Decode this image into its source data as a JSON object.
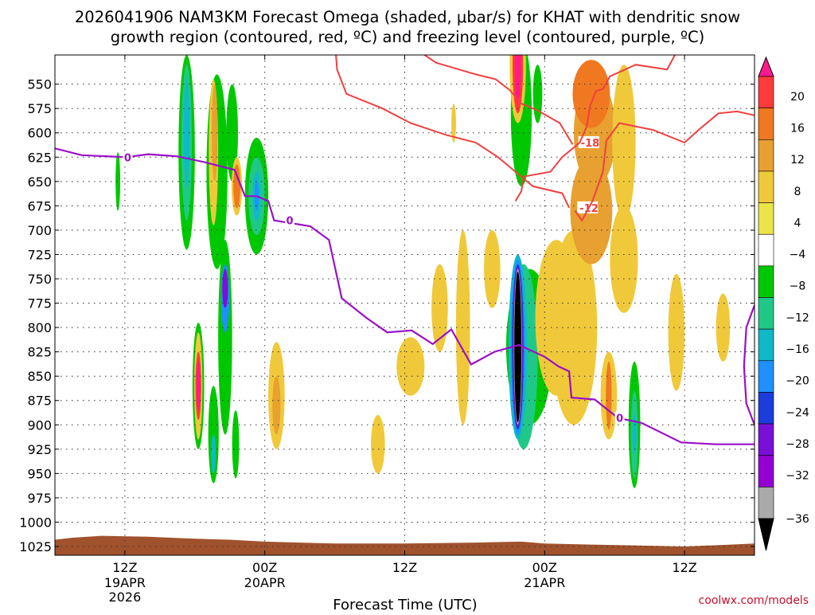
{
  "chart_data": {
    "type": "heatmap",
    "title_lines": [
      "2026041906 NAM3KM Forecast Omega (shaded, μbar/s) for KHAT with dendritic snow",
      "growth region (contoured, red, ºC) and freezing level (contoured, purple, ºC)"
    ],
    "xlabel": "Forecast Time (UTC)",
    "credit": "coolwx.com/models",
    "y_axis": {
      "unit": "hPa",
      "ticks": [
        550,
        575,
        600,
        625,
        650,
        675,
        700,
        725,
        750,
        775,
        800,
        825,
        850,
        875,
        900,
        925,
        950,
        975,
        1000,
        1025
      ],
      "range": [
        520,
        1034
      ]
    },
    "x_axis": {
      "unit": "hours after 2026041906",
      "range": [
        0,
        60
      ],
      "ticks": [
        {
          "hours": 6,
          "label": "12Z",
          "sub": [
            "19APR",
            "2026"
          ]
        },
        {
          "hours": 18,
          "label": "00Z",
          "sub": [
            "20APR"
          ]
        },
        {
          "hours": 30,
          "label": "12Z",
          "sub": []
        },
        {
          "hours": 42,
          "label": "00Z",
          "sub": [
            "21APR"
          ]
        },
        {
          "hours": 54,
          "label": "12Z",
          "sub": []
        }
      ]
    },
    "colorbar": {
      "tick_labels": [
        "20",
        "16",
        "12",
        "8",
        "4",
        "−4",
        "−8",
        "−12",
        "−16",
        "−20",
        "−24",
        "−28",
        "−32",
        "−36"
      ],
      "colors": [
        "#ff1a8c",
        "#ff3a3a",
        "#f07820",
        "#e8a030",
        "#f0c93a",
        "#ece448",
        "#ffffff",
        "#00c800",
        "#20c888",
        "#10b8c8",
        "#1e90ff",
        "#1c3cdc",
        "#7a10d8",
        "#9400d3",
        "#aaaaaa",
        "#000000"
      ]
    },
    "omega_blobs": [
      {
        "hours": 5.4,
        "p": 650,
        "dh": 0.2,
        "dp": 60,
        "color": "#00c800"
      },
      {
        "hours": 11.3,
        "p": 620,
        "dh": 0.7,
        "dp": 200,
        "color": "#00c800"
      },
      {
        "hours": 11.3,
        "p": 610,
        "dh": 0.45,
        "dp": 160,
        "color": "#20c888"
      },
      {
        "hours": 11.3,
        "p": 600,
        "dh": 0.25,
        "dp": 110,
        "color": "#10b8c8"
      },
      {
        "hours": 13.9,
        "p": 640,
        "dh": 0.9,
        "dp": 200,
        "color": "#00c800"
      },
      {
        "hours": 13.6,
        "p": 620,
        "dh": 0.4,
        "dp": 150,
        "color": "#f0c93a"
      },
      {
        "hours": 13.7,
        "p": 600,
        "dh": 0.25,
        "dp": 100,
        "color": "#e8a030"
      },
      {
        "hours": 15.2,
        "p": 600,
        "dh": 0.5,
        "dp": 100,
        "color": "#00c800"
      },
      {
        "hours": 15.6,
        "p": 655,
        "dh": 0.45,
        "dp": 60,
        "color": "#f0c93a"
      },
      {
        "hours": 15.6,
        "p": 655,
        "dh": 0.3,
        "dp": 45,
        "color": "#f07820"
      },
      {
        "hours": 17.3,
        "p": 665,
        "dh": 1.0,
        "dp": 120,
        "color": "#00c800"
      },
      {
        "hours": 17.3,
        "p": 665,
        "dh": 0.7,
        "dp": 80,
        "color": "#20c888"
      },
      {
        "hours": 17.3,
        "p": 665,
        "dh": 0.35,
        "dp": 50,
        "color": "#10b8c8"
      },
      {
        "hours": 17.3,
        "p": 665,
        "dh": 0.18,
        "dp": 30,
        "color": "#1e90ff"
      },
      {
        "hours": 14.6,
        "p": 810,
        "dh": 0.6,
        "dp": 200,
        "color": "#00c800"
      },
      {
        "hours": 14.6,
        "p": 770,
        "dh": 0.35,
        "dp": 70,
        "color": "#1e90ff"
      },
      {
        "hours": 14.6,
        "p": 760,
        "dh": 0.25,
        "dp": 40,
        "color": "#7a10d8"
      },
      {
        "hours": 12.3,
        "p": 860,
        "dh": 0.5,
        "dp": 130,
        "color": "#00c800"
      },
      {
        "hours": 12.3,
        "p": 860,
        "dh": 0.35,
        "dp": 110,
        "color": "#f0c93a"
      },
      {
        "hours": 12.3,
        "p": 860,
        "dh": 0.25,
        "dp": 70,
        "color": "#ff3a3a"
      },
      {
        "hours": 12.3,
        "p": 860,
        "dh": 0.15,
        "dp": 50,
        "color": "#ff1a8c"
      },
      {
        "hours": 13.6,
        "p": 910,
        "dh": 0.45,
        "dp": 100,
        "color": "#00c800"
      },
      {
        "hours": 13.6,
        "p": 930,
        "dh": 0.2,
        "dp": 40,
        "color": "#10b8c8"
      },
      {
        "hours": 15.5,
        "p": 920,
        "dh": 0.3,
        "dp": 70,
        "color": "#00c800"
      },
      {
        "hours": 19.0,
        "p": 870,
        "dh": 0.7,
        "dp": 110,
        "color": "#f0c93a"
      },
      {
        "hours": 19.0,
        "p": 880,
        "dh": 0.35,
        "dp": 60,
        "color": "#e8a030"
      },
      {
        "hours": 27.7,
        "p": 920,
        "dh": 0.6,
        "dp": 60,
        "color": "#f0c93a"
      },
      {
        "hours": 30.5,
        "p": 840,
        "dh": 1.2,
        "dp": 60,
        "color": "#f0c93a"
      },
      {
        "hours": 33.0,
        "p": 780,
        "dh": 0.7,
        "dp": 90,
        "color": "#f0c93a"
      },
      {
        "hours": 35.0,
        "p": 800,
        "dh": 0.6,
        "dp": 200,
        "color": "#f0c93a"
      },
      {
        "hours": 34.2,
        "p": 590,
        "dh": 0.2,
        "dp": 40,
        "color": "#f0c93a"
      },
      {
        "hours": 40.0,
        "p": 580,
        "dh": 0.9,
        "dp": 150,
        "color": "#00c800"
      },
      {
        "hours": 39.7,
        "p": 530,
        "dh": 0.7,
        "dp": 120,
        "color": "#f0c93a"
      },
      {
        "hours": 39.7,
        "p": 530,
        "dh": 0.45,
        "dp": 100,
        "color": "#ff3a3a"
      },
      {
        "hours": 39.7,
        "p": 530,
        "dh": 0.25,
        "dp": 80,
        "color": "#ff1a8c"
      },
      {
        "hours": 41.4,
        "p": 560,
        "dh": 0.4,
        "dp": 60,
        "color": "#00c800"
      },
      {
        "hours": 37.5,
        "p": 740,
        "dh": 0.7,
        "dp": 80,
        "color": "#f0c93a"
      },
      {
        "hours": 40.7,
        "p": 820,
        "dh": 2.0,
        "dp": 160,
        "color": "#00c800"
      },
      {
        "hours": 40.2,
        "p": 830,
        "dh": 1.2,
        "dp": 190,
        "color": "#20c888"
      },
      {
        "hours": 39.7,
        "p": 820,
        "dh": 0.8,
        "dp": 190,
        "color": "#10b8c8"
      },
      {
        "hours": 39.7,
        "p": 820,
        "dh": 0.6,
        "dp": 180,
        "color": "#1e90ff"
      },
      {
        "hours": 39.7,
        "p": 820,
        "dh": 0.5,
        "dp": 170,
        "color": "#1c3cdc"
      },
      {
        "hours": 39.7,
        "p": 820,
        "dh": 0.42,
        "dp": 165,
        "color": "#7a10d8"
      },
      {
        "hours": 39.7,
        "p": 820,
        "dh": 0.35,
        "dp": 160,
        "color": "#aaaaaa"
      },
      {
        "hours": 39.7,
        "p": 820,
        "dh": 0.3,
        "dp": 155,
        "color": "#000000"
      },
      {
        "hours": 43.0,
        "p": 790,
        "dh": 1.8,
        "dp": 160,
        "color": "#f0c93a"
      },
      {
        "hours": 44.5,
        "p": 800,
        "dh": 2.0,
        "dp": 200,
        "color": "#f0c93a"
      },
      {
        "hours": 46.0,
        "p": 680,
        "dh": 1.8,
        "dp": 110,
        "color": "#e8a030"
      },
      {
        "hours": 46.3,
        "p": 600,
        "dh": 1.8,
        "dp": 110,
        "color": "#e8a030"
      },
      {
        "hours": 46.0,
        "p": 560,
        "dh": 1.6,
        "dp": 70,
        "color": "#f07820"
      },
      {
        "hours": 48.8,
        "p": 730,
        "dh": 1.2,
        "dp": 110,
        "color": "#f0c93a"
      },
      {
        "hours": 48.8,
        "p": 610,
        "dh": 1.0,
        "dp": 160,
        "color": "#f0c93a"
      },
      {
        "hours": 47.5,
        "p": 870,
        "dh": 0.7,
        "dp": 90,
        "color": "#f0c93a"
      },
      {
        "hours": 47.5,
        "p": 870,
        "dh": 0.25,
        "dp": 70,
        "color": "#f07820"
      },
      {
        "hours": 49.7,
        "p": 900,
        "dh": 0.5,
        "dp": 130,
        "color": "#00c800"
      },
      {
        "hours": 49.7,
        "p": 910,
        "dh": 0.3,
        "dp": 90,
        "color": "#20c888"
      },
      {
        "hours": 49.7,
        "p": 910,
        "dh": 0.18,
        "dp": 40,
        "color": "#10b8c8"
      },
      {
        "hours": 53.3,
        "p": 805,
        "dh": 0.7,
        "dp": 120,
        "color": "#f0c93a"
      },
      {
        "hours": 57.3,
        "p": 800,
        "dh": 0.6,
        "dp": 70,
        "color": "#f0c93a"
      }
    ],
    "dendritic_contours": [
      {
        "label": "-18",
        "label_at": {
          "hours": 45.1,
          "p": 610
        },
        "points": [
          [
            31.7,
            520
          ],
          [
            32.7,
            528
          ],
          [
            36.1,
            540
          ],
          [
            37.8,
            545
          ],
          [
            39.0,
            556
          ],
          [
            40.0,
            570
          ],
          [
            41.4,
            577
          ],
          [
            43.3,
            590
          ],
          [
            44.4,
            612
          ]
        ]
      },
      {
        "label": "-18",
        "label_at": null,
        "points": [
          [
            24.1,
            520
          ],
          [
            24.2,
            535
          ],
          [
            25.0,
            560
          ],
          [
            28.1,
            575
          ],
          [
            30.5,
            590
          ],
          [
            33.5,
            602
          ],
          [
            36.1,
            610
          ],
          [
            38.0,
            625
          ],
          [
            39.5,
            640
          ],
          [
            41.0,
            655
          ],
          [
            43.5,
            662
          ],
          [
            44.1,
            677
          ]
        ]
      },
      {
        "label": "-12",
        "label_at": {
          "hours": 45.0,
          "p": 677
        },
        "points": [
          [
            39.5,
            670
          ],
          [
            40.0,
            660
          ],
          [
            40.2,
            645
          ],
          [
            42.5,
            640
          ],
          [
            43.5,
            625
          ],
          [
            45.0,
            610
          ],
          [
            45.6,
            594
          ],
          [
            45.9,
            572
          ],
          [
            46.4,
            557
          ],
          [
            47.0,
            555
          ],
          [
            47.6,
            542
          ],
          [
            49.8,
            530
          ],
          [
            52.5,
            535
          ],
          [
            53.4,
            515
          ]
        ]
      },
      {
        "label": "-12",
        "label_at": null,
        "points": [
          [
            44.6,
            680
          ],
          [
            45.2,
            690
          ],
          [
            46.1,
            670
          ],
          [
            47.0,
            640
          ],
          [
            47.3,
            608
          ],
          [
            48.4,
            590
          ],
          [
            51.3,
            597
          ],
          [
            54.0,
            610
          ],
          [
            55.2,
            597
          ],
          [
            56.9,
            580
          ],
          [
            58.5,
            578
          ],
          [
            60,
            582
          ]
        ]
      }
    ],
    "freezing_level": {
      "label": "0",
      "label_positions": [
        {
          "hours": 6.1,
          "p": 625
        },
        {
          "hours": 20.0,
          "p": 690
        },
        {
          "hours": 48.3,
          "p": 893
        }
      ],
      "points": [
        [
          0,
          616
        ],
        [
          2.3,
          623
        ],
        [
          6.1,
          625
        ],
        [
          8.0,
          622
        ],
        [
          10.4,
          624
        ],
        [
          12.8,
          630
        ],
        [
          15.4,
          638
        ],
        [
          16.3,
          665
        ],
        [
          17.3,
          665
        ],
        [
          18.3,
          670
        ],
        [
          18.8,
          690
        ],
        [
          21.9,
          696
        ],
        [
          23.5,
          710
        ],
        [
          24.6,
          770
        ],
        [
          26.7,
          790
        ],
        [
          28.5,
          805
        ],
        [
          30.6,
          803
        ],
        [
          32.4,
          817
        ],
        [
          34.0,
          802
        ],
        [
          35.7,
          838
        ],
        [
          37.7,
          825
        ],
        [
          39.8,
          818
        ],
        [
          42.0,
          830
        ],
        [
          43.2,
          840
        ],
        [
          44.1,
          845
        ],
        [
          44.3,
          872
        ],
        [
          46.3,
          874
        ],
        [
          48.3,
          893
        ],
        [
          50.3,
          898
        ],
        [
          53.7,
          918
        ],
        [
          56.7,
          920
        ],
        [
          58.9,
          920
        ],
        [
          60,
          920
        ]
      ]
    },
    "freezing_level_right": {
      "points": [
        [
          60,
          777
        ],
        [
          59.3,
          800
        ],
        [
          59.1,
          840
        ],
        [
          59.3,
          878
        ],
        [
          60,
          900
        ]
      ]
    },
    "terrain": {
      "color": "#a0522d",
      "surface_p": [
        [
          0,
          1018
        ],
        [
          1.5,
          1016
        ],
        [
          4,
          1014
        ],
        [
          8,
          1015
        ],
        [
          12,
          1017
        ],
        [
          15,
          1018
        ],
        [
          18,
          1020
        ],
        [
          24,
          1022
        ],
        [
          30,
          1022
        ],
        [
          36,
          1021
        ],
        [
          40,
          1020
        ],
        [
          42,
          1022
        ],
        [
          46,
          1023
        ],
        [
          50,
          1024
        ],
        [
          54,
          1025
        ],
        [
          58,
          1023
        ],
        [
          60,
          1022
        ]
      ]
    }
  }
}
